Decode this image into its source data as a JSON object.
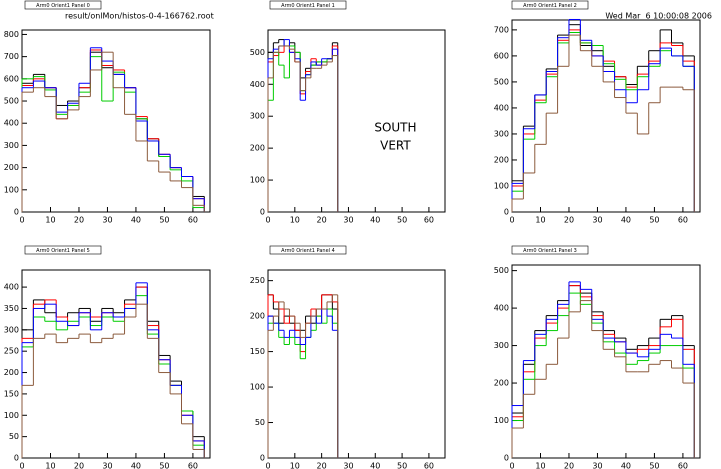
{
  "header": {
    "file": "result/onlMon/histos-0-4-166762.root",
    "date": "Wed Mar  6 10:00:08 2006"
  },
  "chart_data": [
    {
      "type": "histogram",
      "title": "Arm0 Orient1 Panel 0",
      "bins": [
        0,
        4,
        8,
        12,
        16,
        20,
        24,
        28,
        32,
        36,
        40,
        44,
        48,
        52,
        56,
        60,
        64
      ],
      "xlim": [
        0,
        66
      ],
      "xticks": [
        0,
        10,
        20,
        30,
        40,
        50,
        60
      ],
      "ylim": [
        0,
        820
      ],
      "yticks": [
        0,
        100,
        200,
        300,
        400,
        500,
        600,
        700,
        800
      ],
      "series": [
        {
          "color": "#000000",
          "values": [
            580,
            620,
            560,
            480,
            500,
            560,
            720,
            650,
            620,
            560,
            420,
            330,
            250,
            200,
            160,
            70
          ]
        },
        {
          "color": "#ff0000",
          "values": [
            570,
            600,
            560,
            420,
            480,
            560,
            730,
            660,
            640,
            560,
            430,
            330,
            260,
            200,
            160,
            60
          ]
        },
        {
          "color": "#00cc00",
          "values": [
            600,
            610,
            550,
            440,
            480,
            540,
            700,
            500,
            630,
            540,
            420,
            320,
            250,
            190,
            140,
            20
          ]
        },
        {
          "color": "#0000ff",
          "values": [
            560,
            590,
            560,
            450,
            490,
            580,
            740,
            680,
            620,
            560,
            410,
            320,
            260,
            200,
            160,
            60
          ]
        },
        {
          "color": "#8b5a3c",
          "values": [
            540,
            560,
            520,
            420,
            460,
            520,
            640,
            720,
            560,
            440,
            320,
            230,
            180,
            140,
            110,
            30
          ]
        }
      ]
    },
    {
      "type": "histogram",
      "title": "Arm0 Orient1 Panel 1",
      "bins": [
        0,
        2,
        4,
        6,
        8,
        10,
        12,
        14,
        16,
        18,
        20,
        22,
        24,
        26
      ],
      "xlim": [
        0,
        66
      ],
      "xticks": [
        0,
        10,
        20,
        30,
        40,
        50,
        60
      ],
      "ylim": [
        0,
        570
      ],
      "yticks": [
        0,
        100,
        200,
        300,
        400,
        500
      ],
      "annotations": [
        "SOUTH",
        "VERT"
      ],
      "series": [
        {
          "color": "#000000",
          "values": [
            500,
            530,
            540,
            520,
            530,
            500,
            420,
            450,
            460,
            470,
            470,
            480,
            530
          ]
        },
        {
          "color": "#ff0000",
          "values": [
            470,
            490,
            500,
            520,
            500,
            470,
            370,
            440,
            480,
            460,
            470,
            480,
            520
          ]
        },
        {
          "color": "#00cc00",
          "values": [
            350,
            500,
            460,
            420,
            520,
            500,
            380,
            430,
            460,
            470,
            470,
            480,
            490
          ]
        },
        {
          "color": "#0000ff",
          "values": [
            480,
            510,
            520,
            540,
            500,
            480,
            350,
            430,
            470,
            460,
            480,
            480,
            510
          ]
        },
        {
          "color": "#8b5a3c",
          "values": [
            420,
            500,
            520,
            520,
            510,
            470,
            380,
            420,
            450,
            450,
            460,
            470,
            490
          ]
        }
      ]
    },
    {
      "type": "histogram",
      "title": "Arm0 Orient1 Panel 2",
      "bins": [
        0,
        4,
        8,
        12,
        16,
        20,
        24,
        28,
        32,
        36,
        40,
        44,
        48,
        52,
        56,
        60,
        64
      ],
      "xlim": [
        0,
        66
      ],
      "xticks": [
        0,
        10,
        20,
        30,
        40,
        50,
        60
      ],
      "ylim": [
        0,
        738
      ],
      "yticks": [
        0,
        100,
        200,
        300,
        400,
        500,
        600,
        700
      ],
      "series": [
        {
          "color": "#000000",
          "values": [
            120,
            330,
            450,
            550,
            680,
            720,
            640,
            620,
            560,
            520,
            490,
            560,
            620,
            700,
            650,
            600
          ]
        },
        {
          "color": "#ff0000",
          "values": [
            100,
            300,
            430,
            530,
            660,
            700,
            650,
            600,
            580,
            520,
            480,
            530,
            580,
            650,
            640,
            580
          ]
        },
        {
          "color": "#00cc00",
          "values": [
            80,
            280,
            420,
            520,
            650,
            690,
            650,
            640,
            570,
            510,
            470,
            520,
            560,
            620,
            600,
            560
          ]
        },
        {
          "color": "#0000ff",
          "values": [
            110,
            320,
            450,
            540,
            670,
            740,
            660,
            600,
            540,
            470,
            420,
            470,
            570,
            630,
            600,
            560
          ]
        },
        {
          "color": "#8b5a3c",
          "values": [
            50,
            150,
            260,
            380,
            560,
            680,
            620,
            560,
            500,
            440,
            380,
            300,
            420,
            480,
            480,
            470
          ]
        }
      ]
    },
    {
      "type": "histogram",
      "title": "Arm0 Orient1 Panel 5",
      "bins": [
        0,
        4,
        8,
        12,
        16,
        20,
        24,
        28,
        32,
        36,
        40,
        44,
        48,
        52,
        56,
        60,
        64
      ],
      "xlim": [
        0,
        66
      ],
      "xticks": [
        0,
        10,
        20,
        30,
        40,
        50,
        60
      ],
      "ylim": [
        0,
        440
      ],
      "yticks": [
        0,
        50,
        100,
        150,
        200,
        250,
        300,
        350,
        400
      ],
      "series": [
        {
          "color": "#000000",
          "values": [
            300,
            370,
            340,
            330,
            340,
            350,
            320,
            350,
            340,
            370,
            400,
            320,
            240,
            180,
            110,
            50
          ]
        },
        {
          "color": "#ff0000",
          "values": [
            280,
            360,
            370,
            330,
            310,
            340,
            330,
            340,
            330,
            360,
            400,
            310,
            230,
            170,
            100,
            40
          ]
        },
        {
          "color": "#00cc00",
          "values": [
            260,
            330,
            320,
            300,
            320,
            330,
            310,
            330,
            320,
            350,
            380,
            290,
            220,
            170,
            110,
            30
          ]
        },
        {
          "color": "#0000ff",
          "values": [
            270,
            350,
            360,
            320,
            310,
            340,
            300,
            340,
            330,
            350,
            410,
            300,
            230,
            170,
            100,
            40
          ]
        },
        {
          "color": "#8b5a3c",
          "values": [
            170,
            280,
            290,
            270,
            280,
            290,
            270,
            280,
            290,
            330,
            360,
            280,
            200,
            150,
            80,
            20
          ]
        }
      ]
    },
    {
      "type": "histogram",
      "title": "Arm0 Orient1 Panel 4",
      "bins": [
        0,
        2,
        4,
        6,
        8,
        10,
        12,
        14,
        16,
        18,
        20,
        22,
        24,
        26
      ],
      "xlim": [
        0,
        66
      ],
      "xticks": [
        0,
        10,
        20,
        30,
        40,
        50,
        60
      ],
      "ylim": [
        0,
        265
      ],
      "yticks": [
        0,
        50,
        100,
        150,
        200,
        250
      ],
      "series": [
        {
          "color": "#000000",
          "values": [
            230,
            210,
            190,
            200,
            190,
            180,
            180,
            200,
            190,
            210,
            230,
            230,
            210
          ]
        },
        {
          "color": "#ff0000",
          "values": [
            230,
            220,
            210,
            190,
            200,
            180,
            150,
            190,
            210,
            200,
            230,
            230,
            220
          ]
        },
        {
          "color": "#00cc00",
          "values": [
            190,
            190,
            170,
            160,
            170,
            160,
            140,
            170,
            180,
            200,
            190,
            210,
            190
          ]
        },
        {
          "color": "#0000ff",
          "values": [
            200,
            190,
            180,
            170,
            180,
            170,
            160,
            170,
            200,
            190,
            210,
            200,
            180
          ]
        },
        {
          "color": "#8b5a3c",
          "values": [
            180,
            200,
            220,
            210,
            200,
            190,
            170,
            190,
            200,
            210,
            210,
            220,
            230
          ]
        }
      ]
    },
    {
      "type": "histogram",
      "title": "Arm0 Orient1 Panel 3",
      "bins": [
        0,
        4,
        8,
        12,
        16,
        20,
        24,
        28,
        32,
        36,
        40,
        44,
        48,
        52,
        56,
        60,
        64
      ],
      "xlim": [
        0,
        66
      ],
      "xticks": [
        0,
        10,
        20,
        30,
        40,
        50,
        60
      ],
      "ylim": [
        0,
        515
      ],
      "yticks": [
        0,
        100,
        200,
        300,
        400,
        500
      ],
      "series": [
        {
          "color": "#000000",
          "values": [
            120,
            250,
            340,
            380,
            420,
            460,
            440,
            390,
            340,
            320,
            290,
            300,
            320,
            370,
            380,
            300
          ]
        },
        {
          "color": "#ff0000",
          "values": [
            110,
            230,
            320,
            360,
            400,
            460,
            430,
            380,
            330,
            310,
            280,
            290,
            300,
            350,
            370,
            290
          ]
        },
        {
          "color": "#00cc00",
          "values": [
            100,
            210,
            300,
            340,
            380,
            440,
            410,
            360,
            310,
            280,
            250,
            260,
            280,
            300,
            300,
            240
          ]
        },
        {
          "color": "#0000ff",
          "values": [
            140,
            260,
            330,
            370,
            410,
            470,
            450,
            370,
            320,
            310,
            280,
            270,
            290,
            330,
            320,
            250
          ]
        },
        {
          "color": "#8b5a3c",
          "values": [
            80,
            170,
            210,
            250,
            320,
            390,
            420,
            340,
            290,
            270,
            230,
            230,
            250,
            260,
            240,
            200
          ]
        }
      ]
    }
  ]
}
